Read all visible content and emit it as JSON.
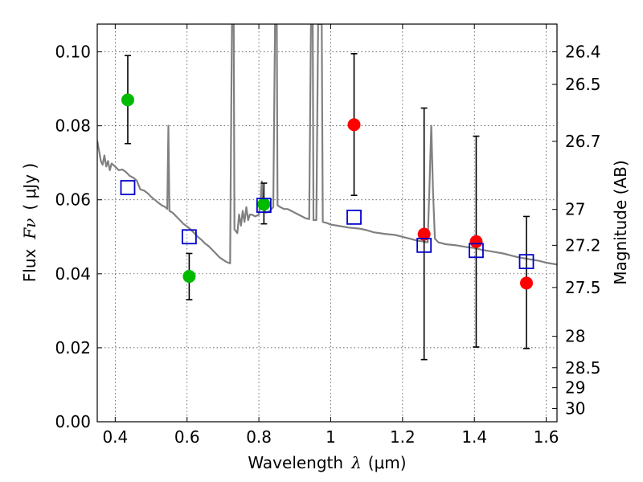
{
  "chart_data": {
    "type": "scatter",
    "title": "",
    "xlabel_text": "Wavelength",
    "xlabel_symbol": "λ",
    "xlabel_unit": "(μm)",
    "ylabel_text": "Flux",
    "ylabel_symbol": "Fν",
    "ylabel_unit": "( μJy )",
    "y2label": "Magnitude (AB)",
    "xlim": [
      0.35,
      1.63
    ],
    "ylim": [
      0.0,
      0.1075
    ],
    "x_ticks": [
      {
        "value": 0.4,
        "label": "0.4"
      },
      {
        "value": 0.6,
        "label": "0.6"
      },
      {
        "value": 0.8,
        "label": "0.8"
      },
      {
        "value": 1.0,
        "label": "1"
      },
      {
        "value": 1.2,
        "label": "1.2"
      },
      {
        "value": 1.4,
        "label": "1.4"
      },
      {
        "value": 1.6,
        "label": "1.6"
      }
    ],
    "y_ticks": [
      {
        "value": 0.0,
        "label": "0.00"
      },
      {
        "value": 0.02,
        "label": "0.02"
      },
      {
        "value": 0.04,
        "label": "0.04"
      },
      {
        "value": 0.06,
        "label": "0.06"
      },
      {
        "value": 0.08,
        "label": "0.08"
      },
      {
        "value": 0.1,
        "label": "0.10"
      }
    ],
    "y2_ticks": [
      {
        "flux": 0.1,
        "label": "26.4"
      },
      {
        "flux": 0.0912,
        "label": "26.5"
      },
      {
        "flux": 0.0758,
        "label": "26.7"
      },
      {
        "flux": 0.0574,
        "label": "27"
      },
      {
        "flux": 0.0477,
        "label": "27.2"
      },
      {
        "flux": 0.0363,
        "label": "27.5"
      },
      {
        "flux": 0.0231,
        "label": "28"
      },
      {
        "flux": 0.0146,
        "label": "28.5"
      },
      {
        "flux": 0.0092,
        "label": "29"
      },
      {
        "flux": 0.0036,
        "label": "30"
      }
    ],
    "colors": {
      "green": "#00bb00",
      "red": "#ff0000",
      "model_box": "#0000cc",
      "spectrum": "#808080",
      "errorbar": "#000000"
    },
    "series": [
      {
        "name": "green observations",
        "marker": "circle",
        "color": "#00bb00",
        "points": [
          {
            "x": 0.435,
            "y": 0.087,
            "ylo": 0.0752,
            "yhi": 0.099
          },
          {
            "x": 0.606,
            "y": 0.0393,
            "ylo": 0.033,
            "yhi": 0.0455
          },
          {
            "x": 0.814,
            "y": 0.0588,
            "ylo": 0.0535,
            "yhi": 0.0645
          }
        ]
      },
      {
        "name": "red observations",
        "marker": "circle",
        "color": "#ff0000",
        "points": [
          {
            "x": 1.065,
            "y": 0.0803,
            "ylo": 0.0612,
            "yhi": 0.0995
          },
          {
            "x": 1.26,
            "y": 0.0507,
            "ylo": 0.0168,
            "yhi": 0.0848
          },
          {
            "x": 1.405,
            "y": 0.0487,
            "ylo": 0.0202,
            "yhi": 0.0772
          },
          {
            "x": 1.545,
            "y": 0.0375,
            "ylo": 0.0198,
            "yhi": 0.0555
          }
        ]
      },
      {
        "name": "model photometry",
        "marker": "open-square",
        "color": "#0000cc",
        "points": [
          {
            "x": 0.435,
            "y": 0.0633
          },
          {
            "x": 0.606,
            "y": 0.05
          },
          {
            "x": 0.814,
            "y": 0.0585
          },
          {
            "x": 1.065,
            "y": 0.0553
          },
          {
            "x": 1.26,
            "y": 0.0477
          },
          {
            "x": 1.405,
            "y": 0.0463
          },
          {
            "x": 1.545,
            "y": 0.0433
          }
        ]
      },
      {
        "name": "model spectrum",
        "type": "line",
        "color": "#808080",
        "points": [
          [
            0.35,
            0.076
          ],
          [
            0.36,
            0.0705
          ],
          [
            0.365,
            0.0695
          ],
          [
            0.37,
            0.072
          ],
          [
            0.375,
            0.069
          ],
          [
            0.38,
            0.0705
          ],
          [
            0.385,
            0.068
          ],
          [
            0.39,
            0.0698
          ],
          [
            0.4,
            0.069
          ],
          [
            0.41,
            0.068
          ],
          [
            0.42,
            0.0682
          ],
          [
            0.43,
            0.0675
          ],
          [
            0.44,
            0.0665
          ],
          [
            0.45,
            0.066
          ],
          [
            0.46,
            0.0652
          ],
          [
            0.47,
            0.0628
          ],
          [
            0.48,
            0.0625
          ],
          [
            0.49,
            0.0618
          ],
          [
            0.5,
            0.0608
          ],
          [
            0.51,
            0.06
          ],
          [
            0.52,
            0.0592
          ],
          [
            0.53,
            0.0585
          ],
          [
            0.54,
            0.058
          ],
          [
            0.545,
            0.0575
          ],
          [
            0.548,
            0.08
          ],
          [
            0.551,
            0.057
          ],
          [
            0.56,
            0.0565
          ],
          [
            0.57,
            0.0555
          ],
          [
            0.58,
            0.0545
          ],
          [
            0.59,
            0.0535
          ],
          [
            0.6,
            0.0528
          ],
          [
            0.61,
            0.052
          ],
          [
            0.62,
            0.051
          ],
          [
            0.63,
            0.05
          ],
          [
            0.64,
            0.0492
          ],
          [
            0.65,
            0.0482
          ],
          [
            0.66,
            0.0475
          ],
          [
            0.67,
            0.0465
          ],
          [
            0.68,
            0.0455
          ],
          [
            0.69,
            0.0445
          ],
          [
            0.7,
            0.0438
          ],
          [
            0.71,
            0.0432
          ],
          [
            0.72,
            0.0428
          ],
          [
            0.722,
            0.07
          ],
          [
            0.725,
            0.1075
          ],
          [
            0.73,
            0.1075
          ],
          [
            0.732,
            0.052
          ],
          [
            0.74,
            0.051
          ],
          [
            0.745,
            0.056
          ],
          [
            0.75,
            0.053
          ],
          [
            0.755,
            0.057
          ],
          [
            0.76,
            0.054
          ],
          [
            0.765,
            0.058
          ],
          [
            0.77,
            0.0545
          ],
          [
            0.775,
            0.056
          ],
          [
            0.78,
            0.056
          ],
          [
            0.79,
            0.0555
          ],
          [
            0.8,
            0.056
          ],
          [
            0.805,
            0.06
          ],
          [
            0.808,
            0.065
          ],
          [
            0.811,
            0.058
          ],
          [
            0.82,
            0.0565
          ],
          [
            0.83,
            0.057
          ],
          [
            0.84,
            0.058
          ],
          [
            0.845,
            0.1075
          ],
          [
            0.85,
            0.1075
          ],
          [
            0.852,
            0.0585
          ],
          [
            0.86,
            0.058
          ],
          [
            0.87,
            0.0575
          ],
          [
            0.88,
            0.0575
          ],
          [
            0.89,
            0.057
          ],
          [
            0.9,
            0.0565
          ],
          [
            0.91,
            0.056
          ],
          [
            0.92,
            0.0555
          ],
          [
            0.93,
            0.055
          ],
          [
            0.94,
            0.0548
          ],
          [
            0.945,
            0.1075
          ],
          [
            0.95,
            0.1075
          ],
          [
            0.952,
            0.0545
          ],
          [
            0.96,
            0.0545
          ],
          [
            0.965,
            0.1075
          ],
          [
            0.975,
            0.1075
          ],
          [
            0.978,
            0.054
          ],
          [
            0.99,
            0.0537
          ],
          [
            1.0,
            0.0533
          ],
          [
            1.02,
            0.053
          ],
          [
            1.05,
            0.0525
          ],
          [
            1.08,
            0.0522
          ],
          [
            1.1,
            0.0518
          ],
          [
            1.12,
            0.0512
          ],
          [
            1.15,
            0.0508
          ],
          [
            1.18,
            0.0505
          ],
          [
            1.2,
            0.05
          ],
          [
            1.22,
            0.0495
          ],
          [
            1.24,
            0.049
          ],
          [
            1.26,
            0.0487
          ],
          [
            1.27,
            0.0485
          ],
          [
            1.275,
            0.064
          ],
          [
            1.28,
            0.08
          ],
          [
            1.285,
            0.062
          ],
          [
            1.29,
            0.0495
          ],
          [
            1.3,
            0.0485
          ],
          [
            1.32,
            0.048
          ],
          [
            1.35,
            0.0477
          ],
          [
            1.38,
            0.0472
          ],
          [
            1.4,
            0.047
          ],
          [
            1.42,
            0.0465
          ],
          [
            1.45,
            0.046
          ],
          [
            1.48,
            0.0455
          ],
          [
            1.5,
            0.045
          ],
          [
            1.52,
            0.0445
          ],
          [
            1.55,
            0.044
          ],
          [
            1.58,
            0.0435
          ],
          [
            1.6,
            0.043
          ],
          [
            1.63,
            0.0425
          ]
        ]
      }
    ]
  }
}
